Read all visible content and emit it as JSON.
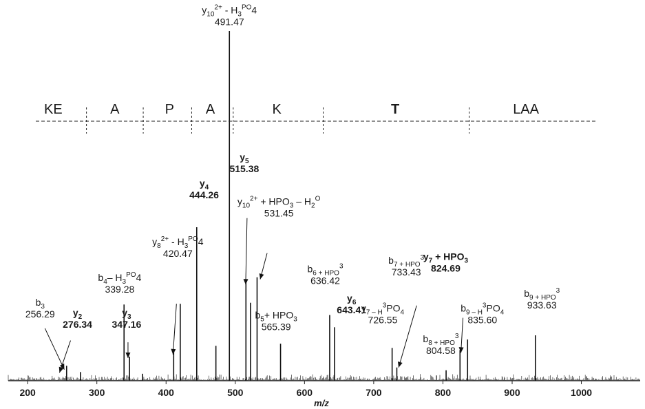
{
  "chart_data": {
    "type": "bar",
    "chart_kind": "mass spectrum (stick plot)",
    "xlabel": "m/z",
    "ylabel": "",
    "xlim": [
      172,
      1085
    ],
    "ylim": [
      0,
      100
    ],
    "grid": false,
    "x_ticks": [
      "200",
      "300",
      "400",
      "500",
      "600",
      "700",
      "800",
      "900",
      "1000"
    ],
    "sequence": {
      "segments": [
        {
          "text": "KE",
          "center": 237,
          "bold": false
        },
        {
          "text": "A",
          "center": 326,
          "bold": false
        },
        {
          "text": "P",
          "center": 405,
          "bold": false
        },
        {
          "text": "A",
          "center": 464,
          "bold": false
        },
        {
          "text": "K",
          "center": 560,
          "bold": false
        },
        {
          "text": "T",
          "center": 731,
          "bold": true
        },
        {
          "text": "LAA",
          "center": 920,
          "bold": false
        }
      ],
      "dividers": [
        285,
        367,
        437,
        497,
        627,
        838
      ]
    },
    "peaks": [
      {
        "mz": 256.3,
        "intensity": 4.3
      },
      {
        "mz": 276.3,
        "intensity": 2.5
      },
      {
        "mz": 339.3,
        "intensity": 21.8
      },
      {
        "mz": 347.2,
        "intensity": 6.9
      },
      {
        "mz": 366.0,
        "intensity": 2.0
      },
      {
        "mz": 411.0,
        "intensity": 8.3
      },
      {
        "mz": 420.5,
        "intensity": 22.0
      },
      {
        "mz": 444.3,
        "intensity": 43.9
      },
      {
        "mz": 472.0,
        "intensity": 10.0
      },
      {
        "mz": 491.5,
        "intensity": 100.0
      },
      {
        "mz": 515.4,
        "intensity": 28.0
      },
      {
        "mz": 522.0,
        "intensity": 22.3
      },
      {
        "mz": 531.5,
        "intensity": 29.6
      },
      {
        "mz": 565.4,
        "intensity": 10.6
      },
      {
        "mz": 636.4,
        "intensity": 18.8
      },
      {
        "mz": 643.4,
        "intensity": 15.3
      },
      {
        "mz": 726.6,
        "intensity": 9.4
      },
      {
        "mz": 733.4,
        "intensity": 3.8
      },
      {
        "mz": 804.6,
        "intensity": 3.0
      },
      {
        "mz": 824.7,
        "intensity": 8.8
      },
      {
        "mz": 835.6,
        "intensity": 11.8
      },
      {
        "mz": 933.6,
        "intensity": 13.0
      }
    ],
    "annotations": [
      {
        "lines": [
          [
            "y",
            "10",
            "2+",
            " - H",
            "3",
            "PO",
            "4"
          ],
          [
            "491.47"
          ]
        ],
        "x_mz": 491.5,
        "y_pct": 105.0,
        "bold": false
      },
      {
        "lines": [
          [
            "b",
            "3"
          ],
          [
            "256.29"
          ]
        ],
        "x_mz": 218,
        "y_pct": 21.5,
        "bold": false
      },
      {
        "lines": [
          [
            "y",
            "2"
          ],
          [
            "276.34"
          ]
        ],
        "x_mz": 272,
        "y_pct": 18.5,
        "bold": true
      },
      {
        "lines": [
          [
            "b",
            "4",
            "",
            "– H",
            "3",
            "PO",
            "4"
          ],
          [
            "339.28"
          ]
        ],
        "x_mz": 333,
        "y_pct": 28.5,
        "bold": false
      },
      {
        "lines": [
          [
            "y",
            "3"
          ],
          [
            "347.16"
          ]
        ],
        "x_mz": 343,
        "y_pct": 18.5,
        "bold": true
      },
      {
        "lines": [
          [
            "y",
            "8",
            "2+",
            " - H",
            "3",
            "PO",
            "4"
          ],
          [
            "420.47"
          ]
        ],
        "x_mz": 417,
        "y_pct": 38.8,
        "bold": false
      },
      {
        "lines": [
          [
            "y",
            "4"
          ],
          [
            "444.26"
          ]
        ],
        "x_mz": 455,
        "y_pct": 55.5,
        "bold": true
      },
      {
        "lines": [
          [
            "y",
            "5"
          ],
          [
            "515.38"
          ]
        ],
        "x_mz": 513,
        "y_pct": 63.0,
        "bold": true
      },
      {
        "lines": [
          [
            "y",
            "10",
            "2+",
            " + HPO",
            "3",
            "",
            " – H",
            "2",
            "O"
          ],
          [
            "531.45"
          ]
        ],
        "x_mz": 563,
        "y_pct": 50.3,
        "bold": false
      },
      {
        "lines": [
          [
            "b",
            "5",
            "",
            "+ HPO",
            "3"
          ],
          [
            "565.39"
          ]
        ],
        "x_mz": 559,
        "y_pct": 17.8,
        "bold": false
      },
      {
        "lines": [
          [
            "b",
            "6",
            "",
            "",
            " + HPO",
            "3"
          ],
          [
            "636.42"
          ]
        ],
        "x_mz": 630,
        "y_pct": 31.0,
        "bold": false
      },
      {
        "lines": [
          [
            "y",
            "6"
          ],
          [
            "643.41"
          ]
        ],
        "x_mz": 668,
        "y_pct": 22.6,
        "bold": true
      },
      {
        "lines": [
          [
            "y",
            "7",
            "",
            "",
            " – H",
            "3",
            "PO",
            "4"
          ],
          [
            "726.55"
          ]
        ],
        "x_mz": 713,
        "y_pct": 19.8,
        "bold": false
      },
      {
        "lines": [
          [
            "b",
            "7",
            "",
            "",
            " + HPO",
            "3"
          ],
          [
            "733.43"
          ]
        ],
        "x_mz": 747,
        "y_pct": 33.5,
        "bold": false
      },
      {
        "lines": [
          [
            "y",
            "7",
            "",
            " + HPO",
            "3"
          ],
          [
            "824.69"
          ]
        ],
        "x_mz": 804,
        "y_pct": 34.5,
        "bold": true
      },
      {
        "lines": [
          [
            "b",
            "8",
            "",
            "",
            " + HPO",
            "3"
          ],
          [
            "804.58"
          ]
        ],
        "x_mz": 797,
        "y_pct": 11.0,
        "bold": false
      },
      {
        "lines": [
          [
            "b",
            "9",
            "",
            "",
            " – H",
            "3",
            "PO",
            "4"
          ],
          [
            "835.60"
          ]
        ],
        "x_mz": 857,
        "y_pct": 19.8,
        "bold": false
      },
      {
        "lines": [
          [
            "b",
            "9",
            "",
            "",
            " + HPO",
            "3"
          ],
          [
            "933.63"
          ]
        ],
        "x_mz": 943,
        "y_pct": 24.0,
        "bold": false
      }
    ],
    "arrows": [
      {
        "from": [
          225,
          15.0
        ],
        "to": [
          253,
          3.2
        ]
      },
      {
        "from": [
          262,
          11.5
        ],
        "to": [
          246,
          2.3
        ]
      },
      {
        "from": [
          345,
          11.0
        ],
        "to": [
          345,
          6.5
        ]
      },
      {
        "from": [
          415,
          22.0
        ],
        "to": [
          410,
          7.5
        ]
      },
      {
        "from": [
          517,
          46.5
        ],
        "to": [
          515,
          27.5
        ]
      },
      {
        "from": [
          546,
          36.5
        ],
        "to": [
          536,
          29.0
        ]
      },
      {
        "from": [
          762,
          21.5
        ],
        "to": [
          736,
          3.8
        ]
      },
      {
        "from": [
          829,
          18.0
        ],
        "to": [
          826,
          8.0
        ]
      }
    ]
  }
}
